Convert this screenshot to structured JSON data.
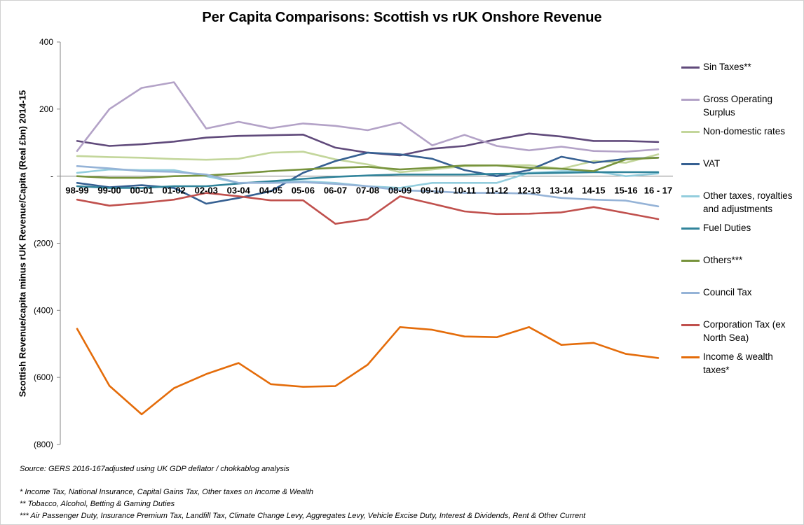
{
  "chart_data": {
    "type": "line",
    "title": "Per Capita Comparisons: Scottish vs rUK Onshore Revenue",
    "ylabel": "Scottish Revenue/capita minus rUK Revenue/Capita (Real £bn) 2014-15",
    "xlabel": "",
    "ylim": [
      -800,
      400
    ],
    "yticks": [
      400,
      200,
      0,
      -200,
      -400,
      -600,
      -800
    ],
    "ytick_labels": [
      "400",
      "200",
      "-",
      "(200)",
      "(400)",
      "(600)",
      "(800)"
    ],
    "grid": false,
    "legend_position": "right",
    "categories": [
      "98-99",
      "99-00",
      "00-01",
      "01-02",
      "02-03",
      "03-04",
      "04-05",
      "05-06",
      "06-07",
      "07-08",
      "08-09",
      "09-10",
      "10-11",
      "11-12",
      "12-13",
      "13-14",
      "14-15",
      "15-16",
      "16 - 17"
    ],
    "series": [
      {
        "name": "Sin Taxes**",
        "color": "#604a7b",
        "values": [
          105,
          90,
          95,
          103,
          115,
          120,
          122,
          124,
          85,
          70,
          62,
          82,
          90,
          110,
          127,
          118,
          105,
          105,
          102
        ]
      },
      {
        "name": "Gross Operating Surplus",
        "color": "#b3a2c7",
        "values": [
          75,
          200,
          263,
          280,
          142,
          162,
          143,
          157,
          150,
          137,
          160,
          92,
          123,
          90,
          77,
          88,
          75,
          73,
          80
        ]
      },
      {
        "name": "Non-domestic rates",
        "color": "#c3d69b",
        "values": [
          60,
          57,
          55,
          51,
          49,
          52,
          70,
          73,
          50,
          35,
          12,
          20,
          30,
          32,
          33,
          22,
          45,
          40,
          65
        ]
      },
      {
        "name": "VAT",
        "color": "#366092",
        "values": [
          -20,
          -33,
          -27,
          -35,
          -82,
          -65,
          -45,
          10,
          45,
          70,
          65,
          52,
          18,
          0,
          18,
          58,
          40,
          52,
          55
        ]
      },
      {
        "name": "Other taxes, royalties and adjustments",
        "color": "#93cddd",
        "values": [
          10,
          20,
          18,
          18,
          0,
          -20,
          -18,
          -15,
          -20,
          -30,
          -35,
          -20,
          -20,
          -20,
          10,
          15,
          15,
          0,
          8
        ]
      },
      {
        "name": "Fuel Duties",
        "color": "#31849b",
        "values": [
          -30,
          -35,
          -35,
          -30,
          -30,
          -22,
          -15,
          -8,
          -2,
          2,
          5,
          5,
          5,
          7,
          8,
          10,
          12,
          12,
          12
        ]
      },
      {
        "name": "Others***",
        "color": "#77933c",
        "values": [
          0,
          -5,
          -5,
          0,
          2,
          8,
          15,
          20,
          25,
          28,
          20,
          25,
          32,
          32,
          25,
          22,
          15,
          50,
          55
        ]
      },
      {
        "name": "Council Tax",
        "color": "#95b3d7",
        "values": [
          30,
          23,
          15,
          13,
          5,
          -20,
          -20,
          -18,
          -23,
          -30,
          -42,
          -45,
          -50,
          -50,
          -52,
          -65,
          -70,
          -73,
          -90
        ]
      },
      {
        "name": "Corporation Tax (ex North Sea)",
        "color": "#c0504d",
        "values": [
          -70,
          -88,
          -80,
          -70,
          -50,
          -60,
          -72,
          -72,
          -142,
          -128,
          -60,
          -82,
          -105,
          -113,
          -112,
          -108,
          -92,
          -110,
          -128
        ]
      },
      {
        "name": "Income & wealth taxes*",
        "color": "#e46c0a",
        "values": [
          -455,
          -625,
          -710,
          -632,
          -590,
          -557,
          -620,
          -628,
          -626,
          -562,
          -450,
          -458,
          -478,
          -480,
          -450,
          -503,
          -497,
          -530,
          -542
        ]
      }
    ]
  },
  "legend": {
    "items": [
      {
        "line1": "Sin Taxes**",
        "line2": ""
      },
      {
        "line1": "Gross Operating",
        "line2": "Surplus"
      },
      {
        "line1": "Non-domestic rates",
        "line2": ""
      },
      {
        "line1": "VAT",
        "line2": ""
      },
      {
        "line1": "Other taxes, royalties",
        "line2": "and adjustments"
      },
      {
        "line1": "Fuel Duties",
        "line2": ""
      },
      {
        "line1": "Others***",
        "line2": ""
      },
      {
        "line1": "Council Tax",
        "line2": ""
      },
      {
        "line1": "Corporation Tax (ex",
        "line2": "North Sea)"
      },
      {
        "line1": "Income & wealth",
        "line2": "taxes*"
      }
    ]
  },
  "notes": {
    "source": "Source:  GERS 2016-167adjusted using UK GDP deflator / chokkablog analysis",
    "note1": "*  Income Tax, National Insurance, Capital Gains Tax, Other taxes on Income & Wealth",
    "note2": "** Tobacco, Alcohol, Betting & Gaming Duties",
    "note3": "*** Air Passenger Duty, Insurance Premium Tax, Landfill Tax, Climate Change Levy, Aggregates Levy, Vehicle Excise Duty, Interest & Dividends, Rent & Other Current"
  }
}
